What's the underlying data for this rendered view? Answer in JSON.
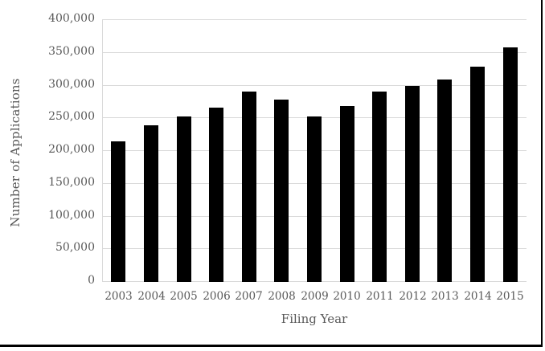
{
  "chart_data": {
    "type": "bar",
    "title": "",
    "xlabel": "Filing Year",
    "ylabel": "Number of Applications",
    "categories": [
      "2003",
      "2004",
      "2005",
      "2006",
      "2007",
      "2008",
      "2009",
      "2010",
      "2011",
      "2012",
      "2013",
      "2014",
      "2015"
    ],
    "values": [
      213000,
      238000,
      251000,
      265000,
      289000,
      277000,
      252000,
      267000,
      289000,
      298000,
      308000,
      327000,
      357000
    ],
    "ylim": [
      0,
      400000
    ],
    "ytick_step": 50000,
    "ytick_labels": [
      "0",
      "50,000",
      "100,000",
      "150,000",
      "200,000",
      "250,000",
      "300,000",
      "350,000",
      "400,000"
    ],
    "grid": true,
    "legend": "none",
    "bar_color": "#000000",
    "gridline_color": "#d9d9d9",
    "text_color": "#595959",
    "frame_border_color": "#000000",
    "background_color": "#ffffff"
  }
}
